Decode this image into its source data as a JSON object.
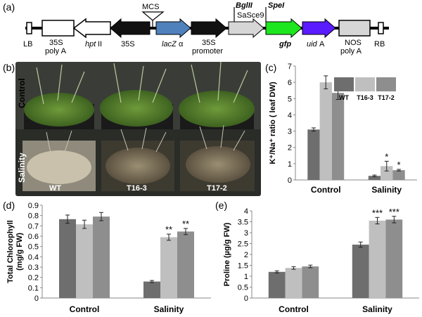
{
  "panels": {
    "a": "(a)",
    "b": "(b)",
    "c": "(c)",
    "d": "(d)",
    "e": "(e)"
  },
  "construct": {
    "lb": "LB",
    "rb": "RB",
    "p35s_polya_line1": "35S",
    "p35s_polya_line2": "poly A",
    "hpt_italic": "hpt",
    "hpt_suffix": " II",
    "p35s": "35S",
    "lacz_italic": "lacZ",
    "lacz_suffix": " α",
    "p35s_promoter_line1": "35S",
    "p35s_promoter_line2": "promoter",
    "mcs": "MCS",
    "bglII": "BglII",
    "speI": "SpeI",
    "sasce9": "SaSce9",
    "gfp": "gfp",
    "uida_italic": "uid",
    "uida_suffix": "A",
    "nos_line1": "NOS",
    "nos_line2": "poly A",
    "colors": {
      "black": "#111111",
      "lacz": "#4f81bd",
      "gfp": "#1ee61e",
      "uida": "#5a1bff",
      "grey": "#d6d6d6"
    }
  },
  "photo": {
    "row_control": "Control",
    "row_salinity": "Salinity",
    "wt": "WT",
    "t16": "T16-3",
    "t172": "T17-2"
  },
  "chart_data": [
    {
      "panel": "c",
      "type": "bar",
      "categories": [
        "Control",
        "Salinity"
      ],
      "series": [
        {
          "name": "WT",
          "values": [
            3.1,
            0.25
          ],
          "errors": [
            0.1,
            0.05
          ],
          "color": "#6e6e6e"
        },
        {
          "name": "T16-3",
          "values": [
            6.0,
            0.85
          ],
          "errors": [
            0.4,
            0.3
          ],
          "color": "#bfbfbf"
        },
        {
          "name": "T17-2",
          "values": [
            5.35,
            0.6
          ],
          "errors": [
            0.4,
            0.05
          ],
          "color": "#8e8e8e"
        }
      ],
      "significance": [
        [
          "",
          ""
        ],
        [
          "",
          "*"
        ],
        [
          "",
          "*"
        ]
      ],
      "ylabel": "K⁺/Na⁺ ratio ( leaf DW)",
      "ylim": [
        0,
        7
      ],
      "yticks": [
        "0",
        "1",
        "2",
        "3",
        "4",
        "5",
        "6",
        "7"
      ],
      "legend": "top-right"
    },
    {
      "panel": "d",
      "type": "bar",
      "categories": [
        "Control",
        "Salinity"
      ],
      "series": [
        {
          "name": "WT",
          "values": [
            0.765,
            0.16
          ],
          "errors": [
            0.04,
            0.01
          ],
          "color": "#6e6e6e"
        },
        {
          "name": "T16-3",
          "values": [
            0.715,
            0.59
          ],
          "errors": [
            0.04,
            0.03
          ],
          "color": "#bfbfbf"
        },
        {
          "name": "T17-2",
          "values": [
            0.79,
            0.645
          ],
          "errors": [
            0.04,
            0.03
          ],
          "color": "#8e8e8e"
        }
      ],
      "significance": [
        [
          "",
          ""
        ],
        [
          "",
          "**"
        ],
        [
          "",
          "**"
        ]
      ],
      "ylabel_line1": "Total Chlorophyll",
      "ylabel_line2": "(mg/g FW)",
      "ylim": [
        0,
        0.9
      ],
      "yticks": [
        "0",
        "0.1",
        "0.2",
        "0.3",
        "0.4",
        "0.5",
        "0.6",
        "0.7",
        "0.8",
        "0.9"
      ]
    },
    {
      "panel": "e",
      "type": "bar",
      "categories": [
        "Control",
        "Salinity"
      ],
      "series": [
        {
          "name": "WT",
          "values": [
            1.2,
            2.45
          ],
          "errors": [
            0.05,
            0.12
          ],
          "color": "#6e6e6e"
        },
        {
          "name": "T16-3",
          "values": [
            1.38,
            3.55
          ],
          "errors": [
            0.06,
            0.15
          ],
          "color": "#bfbfbf"
        },
        {
          "name": "T17-2",
          "values": [
            1.45,
            3.6
          ],
          "errors": [
            0.06,
            0.15
          ],
          "color": "#8e8e8e"
        }
      ],
      "significance": [
        [
          "",
          ""
        ],
        [
          "",
          "***"
        ],
        [
          "",
          "***"
        ]
      ],
      "ylabel": "Proline (µg/g FW)",
      "ylim": [
        0,
        4
      ],
      "yticks": [
        "0",
        "0.5",
        "1",
        "1.5",
        "2",
        "2.5",
        "3",
        "3.5",
        "4"
      ]
    }
  ]
}
